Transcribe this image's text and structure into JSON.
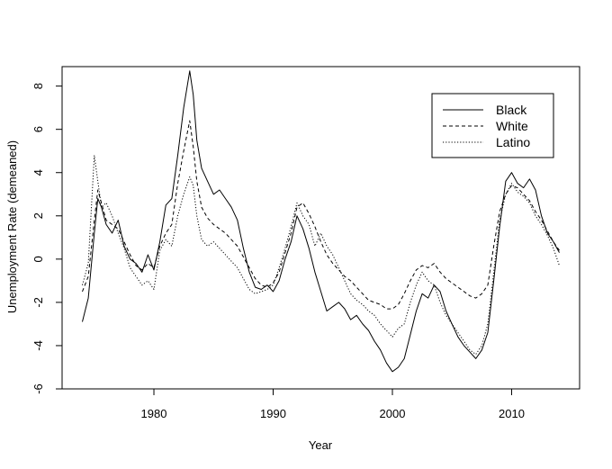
{
  "chart_data": {
    "type": "line",
    "title": "",
    "xlabel": "Year",
    "ylabel": "Unemployment Rate (demeaned)",
    "xlim": [
      1972.3,
      2015.7
    ],
    "ylim": [
      -6.0,
      8.9
    ],
    "x_ticks": [
      1980,
      1990,
      2000,
      2010
    ],
    "y_ticks": [
      -6,
      -4,
      -2,
      0,
      2,
      4,
      6,
      8
    ],
    "x_tick_labels": [
      "1980",
      "1990",
      "2000",
      "2010"
    ],
    "y_tick_labels": [
      "-6",
      "-4",
      "-2",
      "0",
      "2",
      "4",
      "6",
      "8"
    ],
    "grid": false,
    "legend_position": "top-right",
    "series": [
      {
        "name": "Black",
        "style": "solid",
        "x": [
          1974.0,
          1974.5,
          1975.0,
          1975.3,
          1975.6,
          1976.0,
          1976.5,
          1977.0,
          1977.5,
          1978.0,
          1978.5,
          1979.0,
          1979.5,
          1980.0,
          1980.5,
          1981.0,
          1981.5,
          1982.0,
          1982.5,
          1983.0,
          1983.3,
          1983.6,
          1984.0,
          1984.5,
          1985.0,
          1985.5,
          1986.0,
          1986.5,
          1987.0,
          1987.5,
          1988.0,
          1988.5,
          1989.0,
          1989.5,
          1990.0,
          1990.5,
          1991.0,
          1991.5,
          1992.0,
          1992.5,
          1993.0,
          1993.5,
          1994.0,
          1994.5,
          1995.0,
          1995.5,
          1996.0,
          1996.5,
          1997.0,
          1997.5,
          1998.0,
          1998.5,
          1999.0,
          1999.5,
          2000.0,
          2000.5,
          2001.0,
          2001.5,
          2002.0,
          2002.5,
          2003.0,
          2003.5,
          2004.0,
          2004.5,
          2005.0,
          2005.5,
          2006.0,
          2006.5,
          2007.0,
          2007.5,
          2008.0,
          2008.5,
          2009.0,
          2009.5,
          2010.0,
          2010.5,
          2011.0,
          2011.5,
          2012.0,
          2012.5,
          2013.0,
          2013.5,
          2014.0
        ],
        "values": [
          -2.9,
          -1.8,
          1.2,
          2.8,
          2.4,
          1.6,
          1.2,
          1.8,
          0.6,
          0.0,
          -0.2,
          -0.6,
          0.2,
          -0.5,
          0.8,
          2.5,
          2.8,
          4.8,
          7.0,
          8.7,
          7.6,
          5.5,
          4.2,
          3.6,
          3.0,
          3.2,
          2.8,
          2.4,
          1.8,
          0.5,
          -0.6,
          -1.3,
          -1.4,
          -1.2,
          -1.5,
          -1.0,
          0.0,
          0.8,
          2.0,
          1.4,
          0.5,
          -0.6,
          -1.5,
          -2.4,
          -2.2,
          -2.0,
          -2.3,
          -2.8,
          -2.6,
          -3.0,
          -3.3,
          -3.8,
          -4.2,
          -4.8,
          -5.2,
          -5.0,
          -4.6,
          -3.5,
          -2.4,
          -1.6,
          -1.8,
          -1.2,
          -1.5,
          -2.4,
          -3.0,
          -3.6,
          -4.0,
          -4.3,
          -4.6,
          -4.2,
          -3.4,
          -1.0,
          1.5,
          3.6,
          4.0,
          3.5,
          3.3,
          3.7,
          3.2,
          2.0,
          1.2,
          0.8,
          0.3
        ]
      },
      {
        "name": "White",
        "style": "dashed",
        "x": [
          1974.0,
          1974.5,
          1975.0,
          1975.3,
          1975.6,
          1976.0,
          1976.5,
          1977.0,
          1977.5,
          1978.0,
          1978.5,
          1979.0,
          1979.5,
          1980.0,
          1980.5,
          1981.0,
          1981.5,
          1982.0,
          1982.5,
          1983.0,
          1983.3,
          1983.6,
          1984.0,
          1984.5,
          1985.0,
          1985.5,
          1986.0,
          1986.5,
          1987.0,
          1987.5,
          1988.0,
          1988.5,
          1989.0,
          1989.5,
          1990.0,
          1990.5,
          1991.0,
          1991.5,
          1992.0,
          1992.5,
          1993.0,
          1993.5,
          1994.0,
          1994.5,
          1995.0,
          1995.5,
          1996.0,
          1996.5,
          1997.0,
          1997.5,
          1998.0,
          1998.5,
          1999.0,
          1999.5,
          2000.0,
          2000.5,
          2001.0,
          2001.5,
          2002.0,
          2002.5,
          2003.0,
          2003.5,
          2004.0,
          2004.5,
          2005.0,
          2005.5,
          2006.0,
          2006.5,
          2007.0,
          2007.5,
          2008.0,
          2008.5,
          2009.0,
          2009.5,
          2010.0,
          2010.5,
          2011.0,
          2011.5,
          2012.0,
          2012.5,
          2013.0,
          2013.5,
          2014.0
        ],
        "values": [
          -1.5,
          -0.8,
          1.8,
          3.2,
          2.6,
          1.8,
          1.6,
          1.4,
          0.8,
          0.2,
          -0.3,
          -0.5,
          -0.2,
          -0.4,
          0.6,
          1.2,
          1.6,
          3.5,
          5.0,
          6.4,
          5.2,
          3.6,
          2.4,
          1.9,
          1.6,
          1.4,
          1.2,
          0.9,
          0.6,
          0.1,
          -0.4,
          -0.9,
          -1.2,
          -1.3,
          -1.1,
          -0.6,
          0.3,
          1.2,
          2.4,
          2.6,
          2.1,
          1.5,
          0.8,
          0.2,
          -0.2,
          -0.5,
          -0.8,
          -1.0,
          -1.3,
          -1.6,
          -1.9,
          -2.0,
          -2.1,
          -2.3,
          -2.3,
          -2.1,
          -1.6,
          -1.0,
          -0.5,
          -0.3,
          -0.4,
          -0.2,
          -0.6,
          -0.9,
          -1.1,
          -1.3,
          -1.5,
          -1.7,
          -1.8,
          -1.6,
          -1.2,
          0.6,
          2.2,
          3.0,
          3.4,
          3.3,
          3.0,
          2.7,
          2.2,
          1.8,
          1.3,
          0.8,
          0.4
        ]
      },
      {
        "name": "Latino",
        "style": "dotted",
        "x": [
          1974.0,
          1974.5,
          1975.0,
          1975.3,
          1975.6,
          1976.0,
          1976.5,
          1977.0,
          1977.5,
          1978.0,
          1978.5,
          1979.0,
          1979.5,
          1980.0,
          1980.5,
          1981.0,
          1981.5,
          1982.0,
          1982.5,
          1983.0,
          1983.3,
          1983.6,
          1984.0,
          1984.5,
          1985.0,
          1985.5,
          1986.0,
          1986.5,
          1987.0,
          1987.5,
          1988.0,
          1988.5,
          1989.0,
          1989.5,
          1990.0,
          1990.5,
          1991.0,
          1991.5,
          1992.0,
          1992.5,
          1993.0,
          1993.5,
          1994.0,
          1994.5,
          1995.0,
          1995.5,
          1996.0,
          1996.5,
          1997.0,
          1997.5,
          1998.0,
          1998.5,
          1999.0,
          1999.5,
          2000.0,
          2000.5,
          2001.0,
          2001.5,
          2002.0,
          2002.5,
          2003.0,
          2003.5,
          2004.0,
          2004.5,
          2005.0,
          2005.5,
          2006.0,
          2006.5,
          2007.0,
          2007.5,
          2008.0,
          2008.5,
          2009.0,
          2009.5,
          2010.0,
          2010.5,
          2011.0,
          2011.5,
          2012.0,
          2012.5,
          2013.0,
          2013.5,
          2014.0
        ],
        "values": [
          -1.2,
          -0.2,
          4.8,
          3.6,
          2.4,
          2.6,
          2.0,
          1.2,
          0.5,
          -0.4,
          -0.8,
          -1.2,
          -1.0,
          -1.4,
          0.4,
          0.9,
          0.6,
          2.0,
          3.0,
          3.8,
          3.4,
          2.0,
          0.9,
          0.6,
          0.8,
          0.5,
          0.2,
          -0.1,
          -0.4,
          -0.9,
          -1.4,
          -1.6,
          -1.5,
          -1.4,
          -1.2,
          -0.4,
          0.5,
          1.5,
          2.6,
          2.0,
          1.6,
          0.6,
          1.2,
          0.6,
          0.2,
          -0.4,
          -1.0,
          -1.6,
          -1.9,
          -2.1,
          -2.4,
          -2.6,
          -3.0,
          -3.3,
          -3.6,
          -3.2,
          -3.0,
          -2.0,
          -1.2,
          -0.6,
          -1.0,
          -1.2,
          -2.0,
          -2.6,
          -3.0,
          -3.4,
          -3.8,
          -4.2,
          -4.4,
          -4.0,
          -3.0,
          -0.6,
          1.8,
          3.0,
          3.5,
          3.1,
          2.9,
          2.6,
          2.0,
          1.6,
          1.1,
          0.5,
          -0.3
        ]
      }
    ]
  }
}
